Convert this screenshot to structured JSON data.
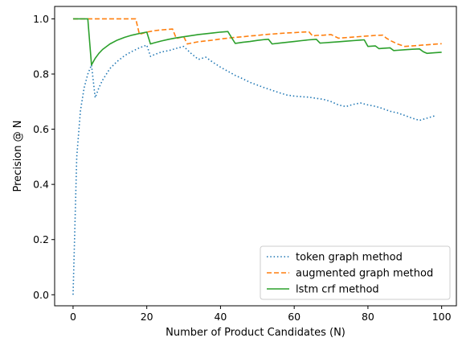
{
  "chart_data": {
    "type": "line",
    "xlabel": "Number of Product Candidates (N)",
    "ylabel": "Precision @ N",
    "xlim": [
      -5,
      104
    ],
    "ylim": [
      -0.04,
      1.045
    ],
    "xticks": [
      0,
      20,
      40,
      60,
      80,
      100
    ],
    "xtick_labels": [
      "0",
      "20",
      "40",
      "60",
      "80",
      "100"
    ],
    "yticks": [
      0.0,
      0.2,
      0.4,
      0.6,
      0.8,
      1.0
    ],
    "ytick_labels": [
      "0.0",
      "0.2",
      "0.4",
      "0.6",
      "0.8",
      "1.0"
    ],
    "grid": false,
    "legend_position": "lower-right",
    "series": [
      {
        "name": "token graph method",
        "color": "#1f77b4",
        "style": "dotted",
        "x": [
          0,
          1,
          2,
          3,
          4,
          5,
          6,
          7,
          8,
          10,
          12,
          14,
          16,
          18,
          20,
          21,
          22,
          24,
          26,
          28,
          30,
          32,
          34,
          36,
          38,
          40,
          42,
          44,
          46,
          48,
          50,
          52,
          54,
          56,
          58,
          60,
          62,
          64,
          66,
          68,
          70,
          72,
          74,
          76,
          78,
          80,
          82,
          84,
          86,
          88,
          90,
          92,
          94,
          96,
          98
        ],
        "y": [
          0.0,
          0.5,
          0.667,
          0.75,
          0.8,
          0.833,
          0.714,
          0.75,
          0.778,
          0.82,
          0.846,
          0.867,
          0.882,
          0.895,
          0.905,
          0.864,
          0.87,
          0.88,
          0.885,
          0.893,
          0.9,
          0.875,
          0.853,
          0.861,
          0.842,
          0.825,
          0.81,
          0.795,
          0.783,
          0.77,
          0.76,
          0.75,
          0.741,
          0.732,
          0.724,
          0.72,
          0.718,
          0.716,
          0.712,
          0.708,
          0.7,
          0.688,
          0.682,
          0.69,
          0.695,
          0.688,
          0.683,
          0.675,
          0.665,
          0.659,
          0.65,
          0.64,
          0.632,
          0.64,
          0.648
        ]
      },
      {
        "name": "augmented graph method",
        "color": "#ff7f0e",
        "style": "dashed",
        "x": [
          0,
          17,
          18,
          20,
          22,
          24,
          26,
          27,
          28,
          30,
          31,
          32,
          34,
          36,
          38,
          40,
          42,
          44,
          46,
          48,
          50,
          52,
          54,
          56,
          58,
          60,
          62,
          64,
          65,
          66,
          68,
          70,
          72,
          74,
          76,
          78,
          80,
          82,
          84,
          85,
          86,
          88,
          90,
          92,
          94,
          96,
          98,
          100
        ],
        "y": [
          1.0,
          1.0,
          0.944,
          0.952,
          0.957,
          0.96,
          0.962,
          0.963,
          0.929,
          0.936,
          0.909,
          0.912,
          0.917,
          0.92,
          0.923,
          0.927,
          0.93,
          0.933,
          0.935,
          0.938,
          0.94,
          0.943,
          0.945,
          0.947,
          0.949,
          0.95,
          0.952,
          0.953,
          0.938,
          0.94,
          0.941,
          0.943,
          0.93,
          0.932,
          0.934,
          0.936,
          0.938,
          0.94,
          0.941,
          0.93,
          0.922,
          0.909,
          0.9,
          0.902,
          0.904,
          0.906,
          0.908,
          0.91
        ]
      },
      {
        "name": "lstm crf method",
        "color": "#2ca02c",
        "style": "solid",
        "x": [
          0,
          4,
          5,
          6,
          7,
          8,
          10,
          12,
          14,
          16,
          18,
          20,
          21,
          22,
          24,
          26,
          28,
          30,
          32,
          34,
          36,
          38,
          40,
          42,
          43,
          44,
          46,
          48,
          50,
          52,
          53,
          54,
          56,
          58,
          60,
          62,
          64,
          66,
          67,
          68,
          70,
          72,
          74,
          76,
          78,
          79,
          80,
          82,
          83,
          84,
          86,
          87,
          88,
          90,
          92,
          94,
          95,
          96,
          98,
          100
        ],
        "y": [
          1.0,
          1.0,
          0.833,
          0.857,
          0.875,
          0.889,
          0.909,
          0.923,
          0.933,
          0.941,
          0.947,
          0.952,
          0.909,
          0.913,
          0.92,
          0.926,
          0.931,
          0.935,
          0.939,
          0.943,
          0.946,
          0.949,
          0.952,
          0.954,
          0.932,
          0.911,
          0.915,
          0.918,
          0.922,
          0.925,
          0.926,
          0.909,
          0.912,
          0.915,
          0.918,
          0.921,
          0.924,
          0.926,
          0.912,
          0.913,
          0.915,
          0.917,
          0.919,
          0.921,
          0.923,
          0.924,
          0.9,
          0.902,
          0.892,
          0.893,
          0.895,
          0.885,
          0.886,
          0.888,
          0.89,
          0.891,
          0.881,
          0.875,
          0.877,
          0.879
        ]
      }
    ]
  }
}
